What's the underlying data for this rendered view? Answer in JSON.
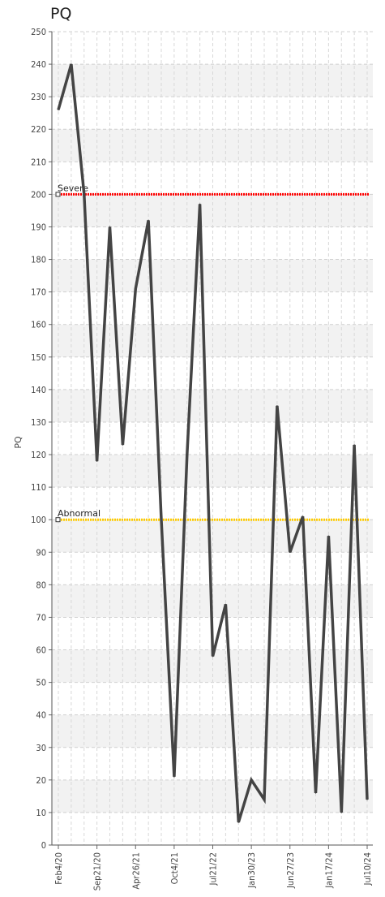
{
  "chart_data": {
    "type": "line",
    "title": "PQ",
    "ylabel": "PQ",
    "ylim": [
      0,
      250
    ],
    "ytick_step": 10,
    "grid": true,
    "x_tick_labels": [
      "Feb4/20",
      "Sep21/20",
      "Apr26/21",
      "Oct4/21",
      "Jul21/22",
      "Jan30/23",
      "Jun27/23",
      "Jan17/24",
      "Jul10/24"
    ],
    "series": [
      {
        "values": [
          226,
          240,
          200,
          118,
          190,
          123,
          171,
          192,
          100,
          21,
          120,
          197,
          58,
          74,
          7,
          20,
          14,
          135,
          90,
          101,
          16,
          95,
          10,
          123,
          14
        ],
        "color": "#444444"
      }
    ],
    "reference_lines": [
      {
        "label": "Severe",
        "value": 200,
        "color": "#ff0000"
      },
      {
        "label": "Abnormal",
        "value": 100,
        "color": "#ffcc00"
      }
    ]
  }
}
